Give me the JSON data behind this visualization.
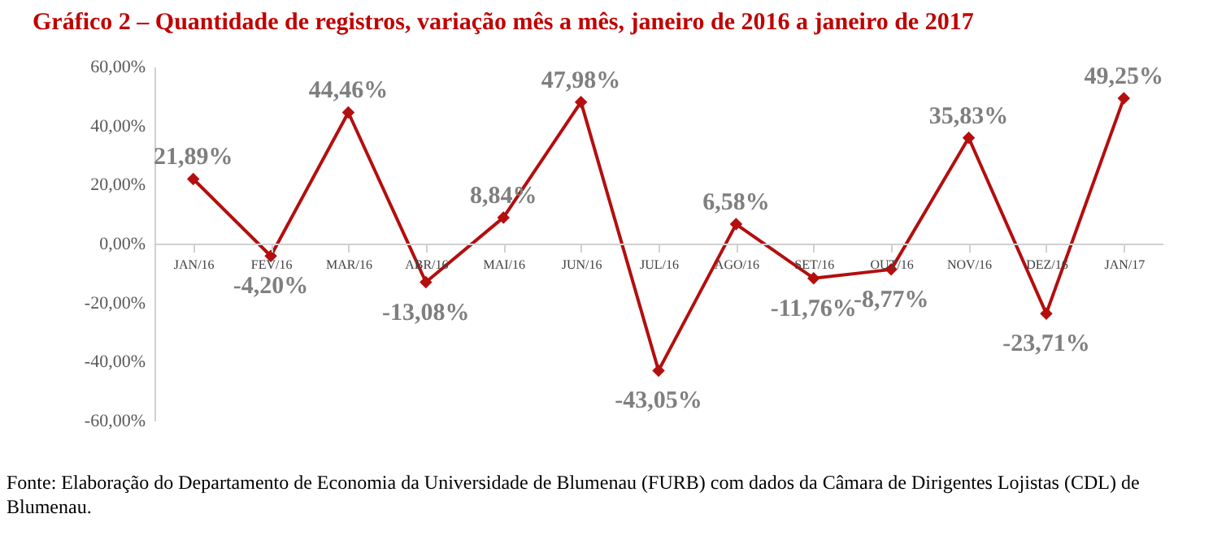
{
  "chart_data": {
    "type": "line",
    "title": "Gráfico 2 – Quantidade de registros, variação mês a mês, janeiro de 2016 a janeiro de 2017",
    "categories": [
      "JAN/16",
      "FEV/16",
      "MAR/16",
      "ABR/16",
      "MAI/16",
      "JUN/16",
      "JUL/16",
      "AGO/16",
      "SET/16",
      "OUT/16",
      "NOV/16",
      "DEZ/16",
      "JAN/17"
    ],
    "values": [
      21.89,
      -4.2,
      44.46,
      -13.08,
      8.84,
      47.98,
      -43.05,
      6.58,
      -11.76,
      -8.77,
      35.83,
      -23.71,
      49.25
    ],
    "value_labels": [
      "21,89%",
      "-4,20%",
      "44,46%",
      "-13,08%",
      "8,84%",
      "47,98%",
      "-43,05%",
      "6,58%",
      "-11,76%",
      "-8,77%",
      "35,83%",
      "-23,71%",
      "49,25%"
    ],
    "color": "#b40e0e",
    "marker": "diamond",
    "line_style": "solid",
    "ylim": [
      -60,
      60
    ],
    "yticks": [
      {
        "value": -60,
        "label": "-60,00%"
      },
      {
        "value": -40,
        "label": "-40,00%"
      },
      {
        "value": -20,
        "label": "-20,00%"
      },
      {
        "value": 0,
        "label": "0,00%"
      },
      {
        "value": 20,
        "label": "20,00%"
      },
      {
        "value": 40,
        "label": "40,00%"
      },
      {
        "value": 60,
        "label": "60,00%"
      }
    ],
    "annotations": [
      "Fonte: Elaboração do Departamento de Economia da Universidade de Blumenau (FURB) com dados da Câmara de Dirigentes Lojistas (CDL) de Blumenau."
    ]
  }
}
